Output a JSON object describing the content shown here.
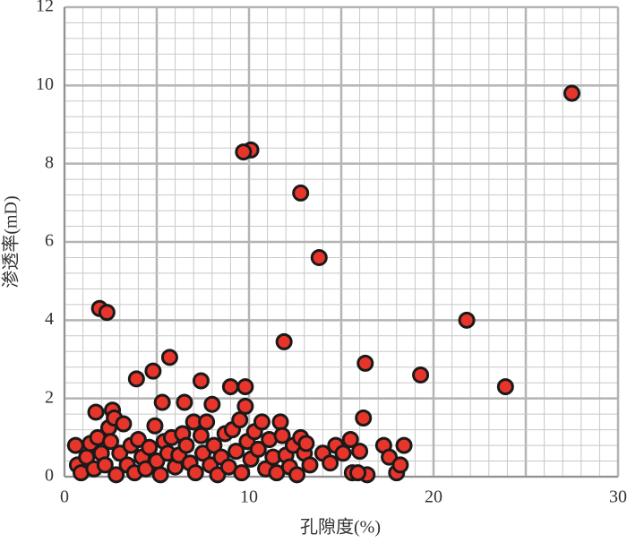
{
  "chart_data": {
    "type": "scatter",
    "x_label": "孔隙度(%)",
    "y_label": "渗透率(mD)",
    "xlim": [
      0,
      30
    ],
    "xticks": [
      0,
      10,
      20,
      30
    ],
    "ylim": [
      0,
      12
    ],
    "yticks": [
      0,
      2,
      4,
      6,
      8,
      10,
      12
    ],
    "grid": true,
    "color": "#e8352b",
    "x": [
      27.5,
      10.1,
      9.7,
      12.8,
      13.8,
      21.8,
      1.9,
      2.3,
      11.9,
      5.7,
      16.3,
      19.3,
      23.9,
      4.8,
      3.9,
      7.4,
      9.0,
      9.8,
      5.3,
      6.5,
      8.0,
      9.8,
      1.7,
      2.6,
      16.2,
      0.6,
      0.7,
      0.9,
      1.2,
      1.4,
      1.6,
      1.8,
      2.0,
      2.2,
      2.4,
      2.5,
      2.7,
      2.8,
      3.0,
      3.2,
      3.4,
      3.6,
      3.8,
      4.0,
      4.2,
      4.4,
      4.6,
      4.9,
      5.0,
      5.2,
      5.4,
      5.6,
      5.8,
      6.0,
      6.2,
      6.4,
      6.6,
      6.8,
      7.0,
      7.1,
      7.4,
      7.5,
      7.7,
      7.9,
      8.1,
      8.3,
      8.5,
      8.7,
      8.9,
      9.1,
      9.3,
      9.5,
      9.6,
      9.9,
      10.1,
      10.3,
      10.5,
      10.7,
      10.9,
      11.1,
      11.3,
      11.5,
      11.7,
      11.8,
      12.0,
      12.2,
      12.4,
      12.6,
      12.8,
      13.0,
      13.1,
      13.3,
      14.0,
      14.4,
      14.7,
      15.1,
      15.5,
      15.6,
      16.0,
      16.4,
      17.3,
      17.6,
      18.0,
      18.2,
      18.4,
      15.9
    ],
    "y": [
      9.8,
      8.35,
      8.3,
      7.25,
      5.6,
      4.0,
      4.3,
      4.2,
      3.45,
      3.05,
      2.9,
      2.6,
      2.3,
      2.7,
      2.5,
      2.45,
      2.3,
      2.3,
      1.9,
      1.9,
      1.85,
      1.8,
      1.65,
      1.7,
      1.5,
      0.8,
      0.3,
      0.1,
      0.5,
      0.85,
      0.2,
      1.0,
      0.6,
      0.3,
      1.25,
      0.9,
      1.5,
      0.05,
      0.6,
      1.35,
      0.3,
      0.8,
      0.1,
      0.95,
      0.5,
      0.2,
      0.75,
      1.3,
      0.4,
      0.05,
      0.9,
      0.6,
      1.0,
      0.25,
      0.55,
      1.1,
      0.8,
      0.35,
      1.4,
      0.1,
      1.05,
      0.6,
      1.4,
      0.3,
      0.8,
      0.05,
      0.5,
      1.1,
      0.25,
      1.2,
      0.65,
      1.45,
      0.1,
      0.9,
      0.45,
      1.15,
      0.7,
      1.4,
      0.2,
      0.95,
      0.5,
      0.1,
      1.4,
      1.05,
      0.55,
      0.25,
      0.8,
      0.05,
      1.0,
      0.6,
      0.85,
      0.3,
      0.6,
      0.35,
      0.8,
      0.6,
      0.95,
      0.1,
      0.65,
      0.05,
      0.8,
      0.5,
      0.1,
      0.3,
      0.8,
      0.1
    ]
  }
}
